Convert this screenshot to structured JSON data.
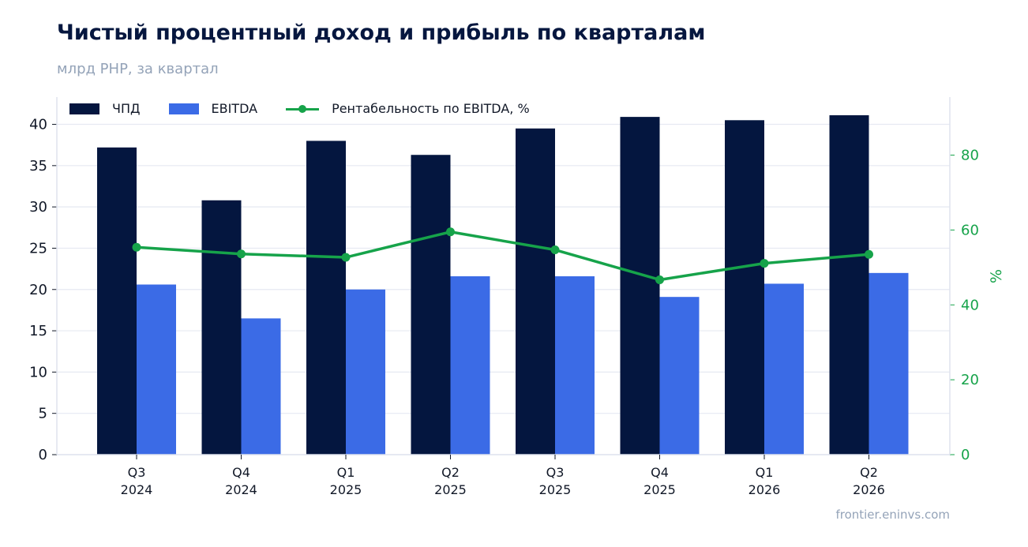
{
  "header": {
    "title": "Чистый процентный доход и прибыль по кварталам",
    "subtitle": "млрд РНР, за квартал"
  },
  "footer": {
    "source": "frontier.eninvs.com"
  },
  "colors": {
    "npd": "#04163f",
    "ebitda": "#3b6be6",
    "margin": "#16a34a",
    "grid": "#e6e9f2",
    "axis": "#dfe3ee"
  },
  "chart_data": {
    "type": "bar",
    "categories": [
      [
        "Q3",
        "2024"
      ],
      [
        "Q4",
        "2024"
      ],
      [
        "Q1",
        "2025"
      ],
      [
        "Q2",
        "2025"
      ],
      [
        "Q3",
        "2025"
      ],
      [
        "Q4",
        "2025"
      ],
      [
        "Q1",
        "2026"
      ],
      [
        "Q2",
        "2026"
      ]
    ],
    "series": [
      {
        "name": "ЧПД",
        "type": "bar",
        "axis": "left",
        "values": [
          37.2,
          30.8,
          38.0,
          36.3,
          39.5,
          40.9,
          40.5,
          41.1
        ]
      },
      {
        "name": "EBITDA",
        "type": "bar",
        "axis": "left",
        "values": [
          20.6,
          16.5,
          20.0,
          21.6,
          21.6,
          19.1,
          20.7,
          22.0
        ]
      },
      {
        "name": "Рентабельность по EBITDA, %",
        "type": "line",
        "axis": "right",
        "values": [
          55.4,
          53.6,
          52.7,
          59.5,
          54.7,
          46.7,
          51.1,
          53.5
        ]
      }
    ],
    "ylim": [
      0,
      43.3
    ],
    "y_ticks": [
      0,
      5,
      10,
      15,
      20,
      25,
      30,
      35,
      40
    ],
    "y2lim": [
      0,
      95.5
    ],
    "y2_ticks": [
      0,
      20,
      40,
      60,
      80
    ],
    "y2label": "%",
    "legend_position": "top-left",
    "grid": true
  }
}
